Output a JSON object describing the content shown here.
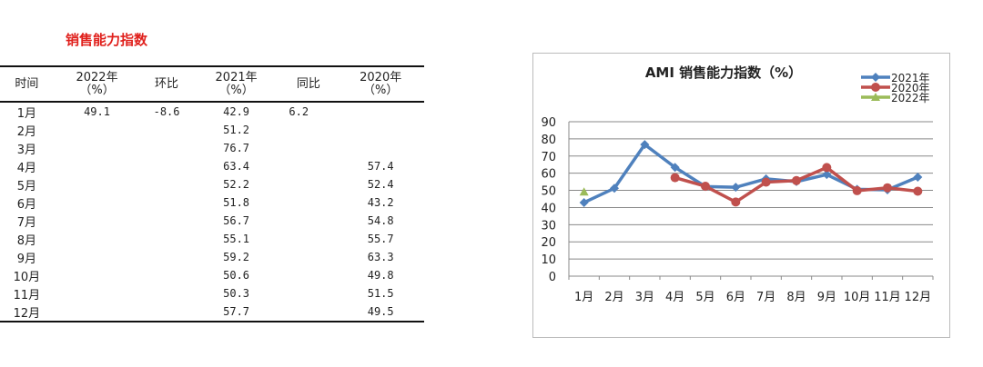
{
  "table_title": "销售能力指数",
  "table": {
    "headers": [
      "时间",
      "2022年\n（%）",
      "环比",
      "2021年\n（%）",
      "同比",
      "2020年\n（%）"
    ],
    "rows": [
      [
        "1月",
        "49.1",
        "-8.6",
        "42.9",
        "6.2",
        ""
      ],
      [
        "2月",
        "",
        "",
        "51.2",
        "",
        ""
      ],
      [
        "3月",
        "",
        "",
        "76.7",
        "",
        ""
      ],
      [
        "4月",
        "",
        "",
        "63.4",
        "",
        "57.4"
      ],
      [
        "5月",
        "",
        "",
        "52.2",
        "",
        "52.4"
      ],
      [
        "6月",
        "",
        "",
        "51.8",
        "",
        "43.2"
      ],
      [
        "7月",
        "",
        "",
        "56.7",
        "",
        "54.8"
      ],
      [
        "8月",
        "",
        "",
        "55.1",
        "",
        "55.7"
      ],
      [
        "9月",
        "",
        "",
        "59.2",
        "",
        "63.3"
      ],
      [
        "10月",
        "",
        "",
        "50.6",
        "",
        "49.8"
      ],
      [
        "11月",
        "",
        "",
        "50.3",
        "",
        "51.5"
      ],
      [
        "12月",
        "",
        "",
        "57.7",
        "",
        "49.5"
      ]
    ]
  },
  "chart_data": {
    "type": "line",
    "title": "AMI 销售能力指数（%）",
    "categories": [
      "1月",
      "2月",
      "3月",
      "4月",
      "5月",
      "6月",
      "7月",
      "8月",
      "9月",
      "10月",
      "11月",
      "12月"
    ],
    "ylim": [
      0,
      90
    ],
    "yticks": [
      0,
      10,
      20,
      30,
      40,
      50,
      60,
      70,
      80,
      90
    ],
    "grid": true,
    "legend": "top-right",
    "series": [
      {
        "name": "2021年",
        "color": "#4f81bd",
        "marker": "diamond",
        "values": [
          42.9,
          51.2,
          76.7,
          63.4,
          52.2,
          51.8,
          56.7,
          55.1,
          59.2,
          50.6,
          50.3,
          57.7
        ]
      },
      {
        "name": "2020年",
        "color": "#c0504d",
        "marker": "circle",
        "values": [
          null,
          null,
          null,
          57.4,
          52.4,
          43.2,
          54.8,
          55.7,
          63.3,
          49.8,
          51.5,
          49.5
        ]
      },
      {
        "name": "2022年",
        "color": "#9bbb59",
        "marker": "triangle",
        "values": [
          49.1,
          null,
          null,
          null,
          null,
          null,
          null,
          null,
          null,
          null,
          null,
          null
        ]
      }
    ]
  }
}
